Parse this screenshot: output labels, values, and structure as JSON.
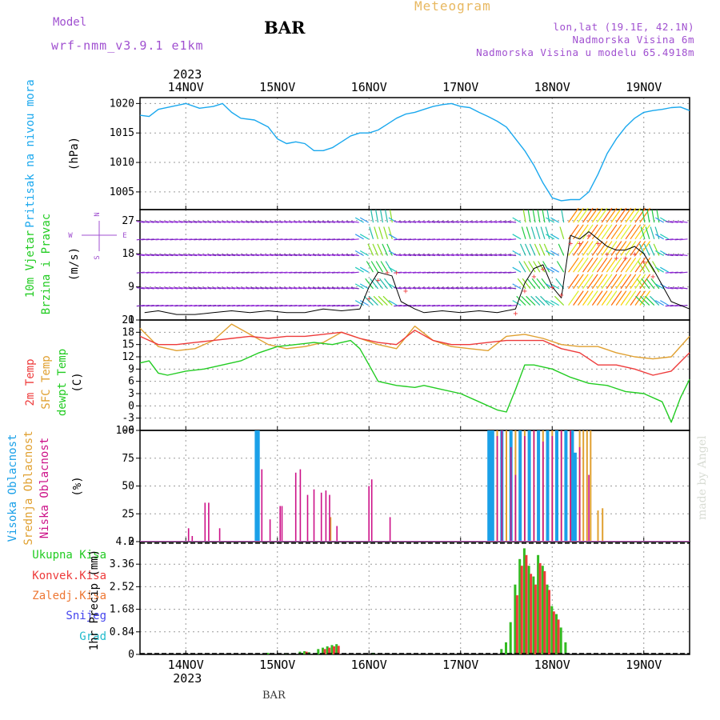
{
  "header": {
    "model_label": "Model",
    "model_value": "wrf-nmm_v3.9.1 e1km",
    "station": "BAR",
    "chart_title": "Meteogram",
    "lonlat": "lon,lat (19.1E, 42.1N)",
    "elevation": "Nadmorska Visina 6m",
    "elevation_model": "Nadmorska Visina u modelu 65.4918m"
  },
  "footer": {
    "station": "BAR",
    "credit": "made by Angel"
  },
  "time_axis": {
    "year": "2023",
    "days": [
      "14NOV",
      "15NOV",
      "16NOV",
      "17NOV",
      "18NOV",
      "19NOV"
    ],
    "day_positions": [
      1,
      2,
      3,
      4,
      5,
      6
    ],
    "range": [
      0.5,
      6.5
    ]
  },
  "colors": {
    "pressure": "#1aa8ee",
    "t2m": "#ee3b3b",
    "tsfc": "#e0a030",
    "dewpt": "#22cc22",
    "cloud_high": "#1aa0e8",
    "cloud_mid": "#e0a030",
    "cloud_low": "#cc1188",
    "precip_total": "#33bb22",
    "precip_conv": "#ee3b3b",
    "wind_label": "#a050d0"
  },
  "chart_data": [
    {
      "type": "line",
      "panel": "pressure",
      "label": "Pritisak na nivou mora",
      "unit": "(hPa)",
      "ylim": [
        1002,
        1021
      ],
      "yticks": [
        1005,
        1010,
        1015,
        1020
      ],
      "series": [
        {
          "name": "Pritisak na nivou mora",
          "x": [
            0.5,
            0.6,
            0.7,
            0.85,
            1.0,
            1.15,
            1.3,
            1.4,
            1.5,
            1.6,
            1.75,
            1.9,
            2.0,
            2.1,
            2.2,
            2.3,
            2.4,
            2.5,
            2.6,
            2.7,
            2.8,
            2.9,
            3.0,
            3.1,
            3.2,
            3.3,
            3.4,
            3.5,
            3.6,
            3.7,
            3.8,
            3.9,
            4.0,
            4.1,
            4.2,
            4.3,
            4.4,
            4.5,
            4.6,
            4.7,
            4.8,
            4.9,
            5.0,
            5.1,
            5.2,
            5.3,
            5.4,
            5.5,
            5.6,
            5.7,
            5.8,
            5.9,
            6.0,
            6.1,
            6.2,
            6.3,
            6.4,
            6.5
          ],
          "y": [
            1018,
            1017.8,
            1019,
            1019.5,
            1020,
            1019.2,
            1019.5,
            1020,
            1018.5,
            1017.5,
            1017.2,
            1016,
            1014,
            1013.2,
            1013.5,
            1013.2,
            1012,
            1012,
            1012.5,
            1013.5,
            1014.5,
            1015,
            1015,
            1015.5,
            1016.5,
            1017.5,
            1018.2,
            1018.5,
            1019,
            1019.5,
            1019.8,
            1020,
            1019.5,
            1019.3,
            1018.5,
            1017.8,
            1017,
            1016,
            1014,
            1012,
            1009.5,
            1006.5,
            1004,
            1003.5,
            1003.7,
            1003.7,
            1005,
            1008,
            1011.5,
            1014,
            1016,
            1017.5,
            1018.5,
            1018.8,
            1019,
            1019.3,
            1019.4,
            1018.8
          ]
        }
      ]
    },
    {
      "type": "line",
      "panel": "wind",
      "label": "10m Vjetar Brzina i Pravac",
      "unit": "(m/s)",
      "direction_legend": [
        "N",
        "W",
        "E",
        "S"
      ],
      "ylim": [
        0,
        30
      ],
      "yticks": [
        0,
        9,
        18,
        27
      ],
      "series": [
        {
          "name": "Brzina",
          "x": [
            0.55,
            0.7,
            0.9,
            1.1,
            1.3,
            1.5,
            1.7,
            1.9,
            2.1,
            2.3,
            2.5,
            2.7,
            2.9,
            3.0,
            3.1,
            3.25,
            3.35,
            3.5,
            3.6,
            3.8,
            4.0,
            4.2,
            4.4,
            4.6,
            4.7,
            4.8,
            4.9,
            5.0,
            5.1,
            5.2,
            5.3,
            5.4,
            5.5,
            5.6,
            5.7,
            5.8,
            5.9,
            6.0,
            6.1,
            6.3,
            6.5
          ],
          "y": [
            2,
            2.5,
            1.5,
            1.5,
            2,
            2.5,
            2,
            2.5,
            2,
            2,
            3,
            2.5,
            3,
            9,
            13,
            12,
            5,
            3,
            2,
            2.5,
            2,
            2.5,
            2,
            3,
            10,
            14,
            15,
            9,
            6,
            23,
            22,
            24,
            22,
            20,
            19,
            19,
            20,
            18,
            14,
            5,
            3
          ]
        },
        {
          "name": "Udari",
          "x": [
            3.0,
            3.1,
            3.2,
            3.3,
            3.4,
            4.6,
            4.7,
            4.8,
            4.9,
            5.0,
            5.1,
            5.2,
            5.3,
            5.4,
            5.5,
            5.6,
            5.7,
            5.8,
            5.9,
            6.0,
            6.1
          ],
          "y": [
            6,
            11,
            13,
            13,
            8,
            2,
            8,
            12,
            14,
            9,
            7,
            21,
            21,
            23,
            21,
            18,
            17,
            17,
            18,
            16,
            12
          ]
        }
      ]
    },
    {
      "type": "line",
      "panel": "temperature",
      "label": "2m Temp / SFC Temp / dewpt Temp",
      "unit": "(C)",
      "ylim": [
        -6,
        21
      ],
      "yticks": [
        -6,
        -3,
        0,
        3,
        6,
        9,
        12,
        15,
        18,
        21
      ],
      "series": [
        {
          "name": "2m Temp",
          "x": [
            0.5,
            0.7,
            0.9,
            1.1,
            1.3,
            1.5,
            1.7,
            1.9,
            2.1,
            2.3,
            2.5,
            2.7,
            2.9,
            3.1,
            3.3,
            3.5,
            3.7,
            3.9,
            4.1,
            4.3,
            4.5,
            4.7,
            4.9,
            5.1,
            5.3,
            5.5,
            5.7,
            5.9,
            6.1,
            6.3,
            6.5
          ],
          "y": [
            17,
            15,
            15,
            15.5,
            16,
            16.5,
            17,
            16.5,
            17,
            17,
            17.5,
            18,
            16.5,
            15.5,
            15,
            18.5,
            16,
            15,
            15,
            15.5,
            16,
            16,
            16,
            14,
            13,
            10,
            10,
            9,
            7.5,
            8.5,
            13
          ]
        },
        {
          "name": "SFC Temp",
          "x": [
            0.5,
            0.7,
            0.9,
            1.1,
            1.3,
            1.5,
            1.7,
            1.9,
            2.1,
            2.3,
            2.5,
            2.7,
            2.9,
            3.1,
            3.3,
            3.5,
            3.7,
            3.9,
            4.1,
            4.3,
            4.5,
            4.7,
            4.9,
            5.1,
            5.3,
            5.5,
            5.7,
            5.9,
            6.1,
            6.3,
            6.5
          ],
          "y": [
            19,
            14.5,
            13.5,
            14,
            16,
            20,
            17.5,
            15,
            14,
            14.5,
            15.5,
            18,
            16.5,
            15,
            14,
            19.5,
            16,
            14.5,
            14,
            13.5,
            17,
            17.5,
            16.5,
            15,
            14.5,
            14.5,
            13,
            12,
            11.5,
            12,
            17
          ]
        },
        {
          "name": "dewpt Temp",
          "x": [
            0.5,
            0.6,
            0.7,
            0.8,
            1.0,
            1.2,
            1.4,
            1.6,
            1.8,
            2.0,
            2.2,
            2.4,
            2.6,
            2.8,
            2.9,
            3.0,
            3.1,
            3.3,
            3.5,
            3.6,
            3.8,
            4.0,
            4.2,
            4.4,
            4.5,
            4.6,
            4.7,
            4.8,
            5.0,
            5.2,
            5.4,
            5.6,
            5.8,
            6.0,
            6.2,
            6.3,
            6.4,
            6.5
          ],
          "y": [
            10.5,
            11,
            8,
            7.5,
            8.5,
            9,
            10,
            11,
            13,
            14.5,
            15,
            15.5,
            15,
            16,
            14,
            10,
            6,
            5,
            4.5,
            5,
            4,
            3,
            1,
            -1,
            -1.5,
            4,
            10,
            10,
            9,
            7,
            5.5,
            5,
            3.5,
            3,
            1,
            -4,
            2,
            6.5
          ]
        }
      ]
    },
    {
      "type": "bar",
      "panel": "clouds",
      "label": "Visoka Oblacnost / Srednja Oblacnost / Niska Oblacnost",
      "unit": "(%)",
      "ylim": [
        0,
        100
      ],
      "yticks": [
        0,
        25,
        50,
        75,
        100
      ],
      "series": [
        {
          "name": "Visoka Oblacnost",
          "x": [
            1.77,
            1.79,
            4.31,
            4.33,
            4.35,
            4.45,
            4.55,
            4.65,
            4.75,
            4.85,
            4.95,
            5.05,
            5.15,
            5.22,
            5.25
          ],
          "y": [
            100,
            100,
            100,
            100,
            100,
            100,
            100,
            100,
            100,
            100,
            100,
            100,
            100,
            100,
            80
          ]
        },
        {
          "name": "Srednja Oblacnost",
          "x": [
            2.58,
            4.4,
            4.5,
            4.6,
            4.7,
            4.8,
            4.9,
            5.0,
            5.1,
            5.2,
            5.3,
            5.34,
            5.38,
            5.42,
            5.5,
            5.55
          ],
          "y": [
            22,
            100,
            100,
            100,
            100,
            100,
            100,
            100,
            100,
            100,
            100,
            100,
            100,
            100,
            28,
            30
          ]
        },
        {
          "name": "Niska Oblacnost",
          "x": [
            1.03,
            1.07,
            1.21,
            1.25,
            1.37,
            1.83,
            1.92,
            2.03,
            2.05,
            2.2,
            2.25,
            2.33,
            2.4,
            2.48,
            2.53,
            2.57,
            2.65,
            3.0,
            3.03,
            3.23,
            4.4,
            4.45,
            4.55,
            4.6,
            4.7,
            4.8,
            4.9,
            5.0,
            5.1,
            5.2,
            5.3,
            5.4
          ],
          "y": [
            12,
            5,
            35,
            35,
            12,
            65,
            20,
            32,
            32,
            62,
            65,
            42,
            47,
            44,
            46,
            42,
            14,
            50,
            56,
            22,
            95,
            100,
            85,
            60,
            95,
            100,
            90,
            95,
            100,
            100,
            85,
            60
          ]
        }
      ]
    },
    {
      "type": "bar",
      "panel": "precip",
      "label": "Ukupna Kisa / Konvek.Kisa / Zaledj.Kisa / Snijeg / Grad",
      "legend": [
        "Ukupna Kisa",
        "Konvek.Kisa",
        "Zaledj.Kisa",
        "Snijeg",
        "Grad"
      ],
      "unit": "1hr Precip (mm)",
      "ylim": [
        0,
        4.2
      ],
      "yticks": [
        0,
        0.84,
        1.68,
        2.52,
        3.36,
        4.2
      ],
      "series": [
        {
          "name": "Ukupna Kisa",
          "x": [
            1.9,
            2.1,
            2.25,
            2.3,
            2.35,
            2.45,
            2.5,
            2.55,
            2.6,
            2.65,
            3.05,
            4.45,
            4.5,
            4.55,
            4.6,
            4.65,
            4.7,
            4.75,
            4.8,
            4.85,
            4.9,
            4.95,
            5.0,
            5.05,
            5.1,
            5.15
          ],
          "y": [
            0.06,
            0.04,
            0.1,
            0.12,
            0.08,
            0.2,
            0.25,
            0.3,
            0.35,
            0.38,
            0.06,
            0.2,
            0.45,
            1.2,
            2.6,
            3.55,
            3.95,
            3.3,
            2.9,
            3.7,
            3.3,
            2.6,
            1.8,
            1.5,
            1.0,
            0.45
          ]
        },
        {
          "name": "Konvek.Kisa",
          "x": [
            2.3,
            2.5,
            2.55,
            2.6,
            2.65,
            4.6,
            4.65,
            4.7,
            4.75,
            4.8,
            4.85,
            4.9,
            4.95,
            5.0,
            5.05
          ],
          "y": [
            0.1,
            0.2,
            0.25,
            0.3,
            0.32,
            2.2,
            3.3,
            3.7,
            3.0,
            2.6,
            3.4,
            3.1,
            2.4,
            1.6,
            1.3
          ]
        }
      ]
    }
  ]
}
